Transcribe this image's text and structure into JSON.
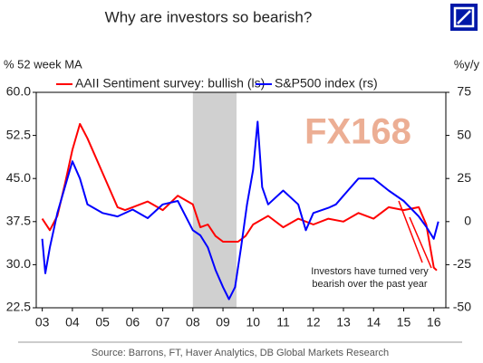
{
  "chart_data": {
    "type": "line",
    "title": "Why are investors so bearish?",
    "y_label": "% 52 week MA",
    "y2_label": "%y/y",
    "source": "Source: Barrons, FT, Haver Analytics, DB Global Markets Research",
    "watermark": "FX168",
    "annotation": "Investors have turned very bearish over the past year",
    "shaded_region": [
      8,
      9.45
    ],
    "xlim": [
      2.8,
      16.4
    ],
    "xticks": [
      {
        "value": 3,
        "label": "03"
      },
      {
        "value": 4,
        "label": "04"
      },
      {
        "value": 5,
        "label": "05"
      },
      {
        "value": 6,
        "label": "06"
      },
      {
        "value": 7,
        "label": "07"
      },
      {
        "value": 8,
        "label": "08"
      },
      {
        "value": 9,
        "label": "09"
      },
      10,
      11,
      12,
      13,
      14,
      15,
      16
    ],
    "ylim": [
      22.5,
      60
    ],
    "yticks": [
      22.5,
      {
        "value": 30,
        "label": "30.0"
      },
      37.5,
      {
        "value": 45,
        "label": "45.0"
      },
      52.5,
      {
        "value": 60,
        "label": "60.0"
      }
    ],
    "y2lim": [
      -50,
      75
    ],
    "y2ticks": [
      -50,
      -25,
      0,
      25,
      50,
      75
    ],
    "series": [
      {
        "name": "AAII Sentiment survey: bullish (ls)",
        "color": "#ff0000",
        "x": [
          3,
          3.25,
          3.5,
          3.75,
          4,
          4.25,
          4.5,
          4.75,
          5,
          5.25,
          5.5,
          5.75,
          6,
          6.5,
          7,
          7.5,
          8,
          8.25,
          8.5,
          8.75,
          9,
          9.5,
          9.75,
          10,
          10.5,
          11,
          11.5,
          12,
          12.5,
          13,
          13.5,
          14,
          14.5,
          15,
          15.5,
          15.75,
          16,
          16.1
        ],
        "values": [
          38,
          36,
          38.5,
          44,
          50,
          54.5,
          52,
          49,
          46,
          43,
          40,
          39.5,
          40,
          41,
          39.5,
          42,
          40.5,
          36.5,
          37,
          35,
          34,
          34,
          35,
          37,
          38.5,
          36.5,
          38,
          37,
          38,
          37.5,
          39,
          38,
          40,
          39.5,
          40,
          37,
          29.5,
          29
        ]
      },
      {
        "name": "S&P500 index (rs)",
        "color": "#0000ff",
        "axis": "y2",
        "x": [
          3,
          3.1,
          3.25,
          3.5,
          3.75,
          4,
          4.25,
          4.5,
          5,
          5.5,
          6,
          6.5,
          7,
          7.5,
          8,
          8.25,
          8.5,
          8.75,
          9,
          9.2,
          9.4,
          9.6,
          9.8,
          10,
          10.15,
          10.3,
          10.5,
          11,
          11.5,
          11.75,
          12,
          12.5,
          12.75,
          13,
          13.5,
          14,
          14.5,
          15,
          15.5,
          15.75,
          16,
          16.15
        ],
        "values": [
          -10,
          -30,
          -15,
          5,
          20,
          35,
          25,
          10,
          5,
          3,
          7,
          2,
          10,
          12,
          -5,
          -8,
          -15,
          -28,
          -38,
          -45,
          -38,
          -15,
          10,
          30,
          58,
          20,
          10,
          18,
          10,
          -5,
          5,
          8,
          10,
          15,
          25,
          25,
          18,
          12,
          3,
          -3,
          -10,
          0
        ]
      }
    ]
  }
}
